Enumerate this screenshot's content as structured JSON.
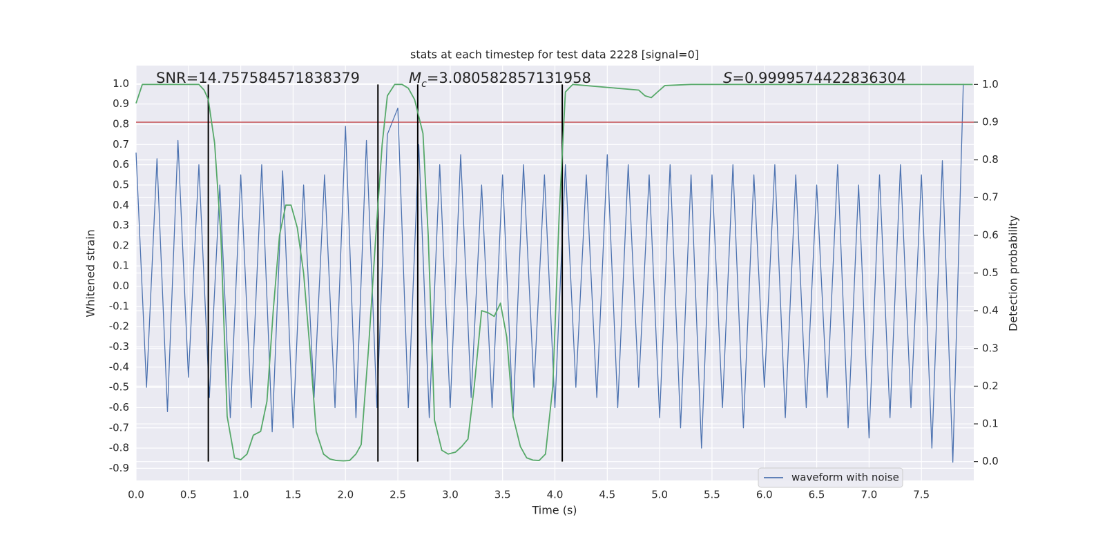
{
  "chart_data": {
    "type": "line",
    "title": "stats at each timestep for test data 2228 [signal=0]",
    "xlabel": "Time (s)",
    "ylabel": "Whitened strain",
    "y2label": "Detection probability",
    "xlim": [
      0,
      8
    ],
    "ylim": [
      -0.96,
      1.09
    ],
    "y2lim": [
      -0.05,
      1.05
    ],
    "xticks": [
      {
        "value": 0,
        "label": "0.0"
      },
      0.5,
      {
        "value": 1,
        "label": "1.0"
      },
      1.5,
      {
        "value": 2,
        "label": "2.0"
      },
      2.5,
      {
        "value": 3,
        "label": "3.0"
      },
      3.5,
      {
        "value": 4,
        "label": "4.0"
      },
      4.5,
      {
        "value": 5,
        "label": "5.0"
      },
      5.5,
      {
        "value": 6,
        "label": "6.0"
      },
      6.5,
      {
        "value": 7,
        "label": "7.0"
      },
      7.5
    ],
    "yticks": [
      -0.9,
      -0.8,
      -0.7,
      -0.6,
      -0.5,
      -0.4,
      -0.3,
      -0.2,
      -0.1,
      {
        "value": 0,
        "label": "0.0"
      },
      0.1,
      0.2,
      0.3,
      0.4,
      0.5,
      0.6,
      0.7,
      0.8,
      0.9,
      {
        "value": 1,
        "label": "1.0"
      }
    ],
    "y2ticks": [
      {
        "value": 0,
        "label": "0.0"
      },
      0.1,
      0.2,
      0.3,
      0.4,
      0.5,
      0.6,
      0.7,
      0.8,
      0.9,
      {
        "value": 1,
        "label": "1.0"
      }
    ],
    "grid": true,
    "series": [
      {
        "name": "waveform with noise",
        "color": "#4c72b0",
        "x": [
          0.0,
          0.1,
          0.2,
          0.3,
          0.4,
          0.5,
          0.6,
          0.7,
          0.8,
          0.9,
          1.0,
          1.1,
          1.2,
          1.3,
          1.4,
          1.5,
          1.6,
          1.7,
          1.8,
          1.9,
          2.0,
          2.1,
          2.2,
          2.3,
          2.4,
          2.5,
          2.6,
          2.7,
          2.8,
          2.9,
          3.0,
          3.1,
          3.2,
          3.3,
          3.4,
          3.5,
          3.6,
          3.7,
          3.8,
          3.9,
          4.0,
          4.1,
          4.2,
          4.3,
          4.4,
          4.5,
          4.6,
          4.7,
          4.8,
          4.9,
          5.0,
          5.1,
          5.2,
          5.3,
          5.4,
          5.5,
          5.6,
          5.7,
          5.8,
          5.9,
          6.0,
          6.1,
          6.2,
          6.3,
          6.4,
          6.5,
          6.6,
          6.7,
          6.8,
          6.9,
          7.0,
          7.1,
          7.2,
          7.3,
          7.4,
          7.5,
          7.6,
          7.7,
          7.8,
          7.9
        ],
        "values": [
          0.66,
          -0.5,
          0.63,
          -0.62,
          0.72,
          -0.45,
          0.6,
          -0.55,
          0.5,
          -0.65,
          0.55,
          -0.6,
          0.6,
          -0.72,
          0.57,
          -0.7,
          0.5,
          -0.55,
          0.55,
          -0.6,
          0.79,
          -0.65,
          0.72,
          -0.6,
          0.75,
          0.88,
          -0.6,
          0.7,
          -0.65,
          0.6,
          -0.6,
          0.65,
          -0.55,
          0.5,
          -0.6,
          0.55,
          -0.65,
          0.6,
          -0.5,
          0.55,
          -0.6,
          0.6,
          -0.5,
          0.55,
          -0.55,
          0.65,
          -0.6,
          0.6,
          -0.5,
          0.55,
          -0.65,
          0.6,
          -0.7,
          0.55,
          -0.8,
          0.55,
          -0.6,
          0.6,
          -0.7,
          0.55,
          -0.5,
          0.6,
          -0.65,
          0.55,
          -0.6,
          0.5,
          -0.55,
          0.6,
          -0.7,
          0.5,
          -0.75,
          0.55,
          -0.65,
          0.6,
          -0.6,
          0.55,
          -0.8,
          0.62,
          -0.87,
          1.0
        ]
      },
      {
        "color": "#55a868",
        "axis": "y2",
        "x": [
          0.0,
          0.06,
          0.6,
          0.65,
          0.69,
          0.75,
          0.81,
          0.87,
          0.94,
          1.0,
          1.06,
          1.12,
          1.19,
          1.25,
          1.31,
          1.37,
          1.43,
          1.48,
          1.54,
          1.6,
          1.66,
          1.72,
          1.79,
          1.85,
          1.91,
          1.98,
          2.04,
          2.1,
          2.15,
          2.22,
          2.29,
          2.35,
          2.4,
          2.47,
          2.54,
          2.6,
          2.66,
          2.74,
          2.79,
          2.85,
          2.92,
          2.98,
          3.05,
          3.11,
          3.17,
          3.23,
          3.3,
          3.36,
          3.42,
          3.48,
          3.54,
          3.6,
          3.67,
          3.73,
          3.79,
          3.85,
          3.91,
          3.98,
          4.04,
          4.1,
          4.17,
          4.8,
          4.86,
          4.92,
          4.98,
          5.05,
          5.3,
          7.99
        ],
        "values": [
          0.95,
          1.0,
          1.0,
          0.985,
          0.96,
          0.845,
          0.6,
          0.12,
          0.01,
          0.005,
          0.02,
          0.07,
          0.08,
          0.16,
          0.4,
          0.6,
          0.68,
          0.68,
          0.62,
          0.5,
          0.3,
          0.08,
          0.02,
          0.007,
          0.003,
          0.002,
          0.003,
          0.02,
          0.045,
          0.3,
          0.6,
          0.84,
          0.97,
          1.0,
          1.0,
          0.99,
          0.96,
          0.87,
          0.6,
          0.11,
          0.03,
          0.02,
          0.025,
          0.04,
          0.06,
          0.2,
          0.4,
          0.395,
          0.385,
          0.42,
          0.33,
          0.12,
          0.04,
          0.01,
          0.004,
          0.003,
          0.02,
          0.2,
          0.65,
          0.98,
          1.0,
          0.985,
          0.97,
          0.965,
          0.98,
          0.997,
          1.0,
          1.0
        ]
      }
    ],
    "threshold": {
      "value": 0.9,
      "axis": "y2",
      "color": "#c44e52"
    },
    "vlines": {
      "x": [
        0.69,
        2.31,
        2.69,
        4.07
      ],
      "span": [
        0,
        1
      ],
      "axis": "y2",
      "color": "#000000"
    },
    "annotations": [
      [
        {
          "text": "SNR=14.757584571838379"
        }
      ],
      [
        {
          "text": "M",
          "italic": true
        },
        {
          "text": "c",
          "italic": true,
          "sub": true
        },
        {
          "text": "=3.080582857131958"
        }
      ],
      [
        {
          "text": "S",
          "italic": true
        },
        {
          "text": "=0.9999574422836304"
        }
      ]
    ]
  }
}
